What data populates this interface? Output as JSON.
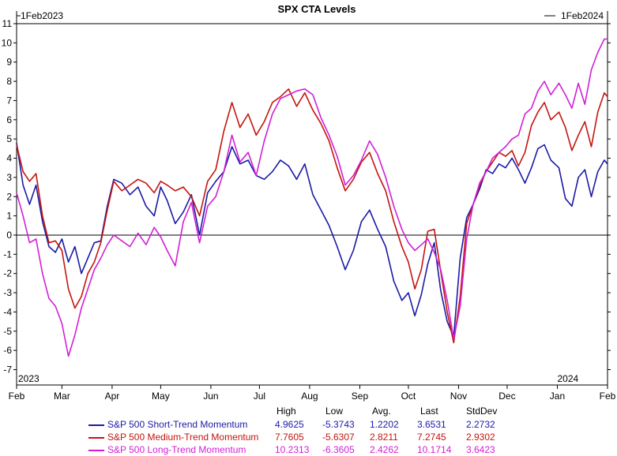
{
  "chart_data": {
    "type": "line",
    "title": "SPX CTA Levels",
    "start_marker": "1Feb2023",
    "end_marker": "1Feb2024",
    "year_labels": [
      "2023",
      "2024"
    ],
    "xlabel": "",
    "ylabel": "",
    "ylim": [
      -7.8,
      11
    ],
    "yticks": [
      -7,
      -6,
      -5,
      -4,
      -3,
      -2,
      -1,
      0,
      1,
      2,
      3,
      4,
      5,
      6,
      7,
      8,
      9,
      10,
      11
    ],
    "x_range": [
      "2023-02-01",
      "2024-02-01"
    ],
    "xticks": [
      {
        "date": "2023-02-01",
        "label": "Feb"
      },
      {
        "date": "2023-03-01",
        "label": "Mar"
      },
      {
        "date": "2023-04-01",
        "label": "Apr"
      },
      {
        "date": "2023-05-01",
        "label": "May"
      },
      {
        "date": "2023-06-01",
        "label": "Jun"
      },
      {
        "date": "2023-07-01",
        "label": "Jul"
      },
      {
        "date": "2023-08-01",
        "label": "Aug"
      },
      {
        "date": "2023-09-01",
        "label": "Sep"
      },
      {
        "date": "2023-10-01",
        "label": "Oct"
      },
      {
        "date": "2023-11-01",
        "label": "Nov"
      },
      {
        "date": "2023-12-01",
        "label": "Dec"
      },
      {
        "date": "2024-01-01",
        "label": "Jan"
      },
      {
        "date": "2024-02-01",
        "label": "Feb"
      }
    ],
    "zero_line": true,
    "grid": false,
    "stat_headers": [
      "High",
      "Low",
      "Avg.",
      "Last",
      "StdDev"
    ],
    "series": [
      {
        "name": "S&P 500 Short-Trend Momentum",
        "color": "#1a1aa6",
        "stats": [
          "4.9625",
          "-5.3743",
          "1.2202",
          "3.6531",
          "2.2732"
        ],
        "points": [
          [
            "2023-02-01",
            4.8
          ],
          [
            "2023-02-05",
            2.6
          ],
          [
            "2023-02-09",
            1.6
          ],
          [
            "2023-02-13",
            2.6
          ],
          [
            "2023-02-17",
            0.7
          ],
          [
            "2023-02-21",
            -0.6
          ],
          [
            "2023-02-25",
            -0.9
          ],
          [
            "2023-03-01",
            -0.2
          ],
          [
            "2023-03-05",
            -1.4
          ],
          [
            "2023-03-09",
            -0.6
          ],
          [
            "2023-03-13",
            -2.0
          ],
          [
            "2023-03-17",
            -1.2
          ],
          [
            "2023-03-21",
            -0.4
          ],
          [
            "2023-03-25",
            -0.3
          ],
          [
            "2023-03-29",
            1.5
          ],
          [
            "2023-04-02",
            2.9
          ],
          [
            "2023-04-07",
            2.7
          ],
          [
            "2023-04-12",
            2.1
          ],
          [
            "2023-04-17",
            2.5
          ],
          [
            "2023-04-22",
            1.5
          ],
          [
            "2023-04-27",
            1.0
          ],
          [
            "2023-05-01",
            2.5
          ],
          [
            "2023-05-05",
            1.8
          ],
          [
            "2023-05-10",
            0.6
          ],
          [
            "2023-05-15",
            1.2
          ],
          [
            "2023-05-20",
            2.1
          ],
          [
            "2023-05-25",
            0.0
          ],
          [
            "2023-05-30",
            2.2
          ],
          [
            "2023-06-04",
            2.8
          ],
          [
            "2023-06-09",
            3.3
          ],
          [
            "2023-06-14",
            4.6
          ],
          [
            "2023-06-19",
            3.7
          ],
          [
            "2023-06-24",
            3.9
          ],
          [
            "2023-06-29",
            3.1
          ],
          [
            "2023-07-04",
            2.9
          ],
          [
            "2023-07-09",
            3.3
          ],
          [
            "2023-07-14",
            3.9
          ],
          [
            "2023-07-19",
            3.6
          ],
          [
            "2023-07-24",
            2.9
          ],
          [
            "2023-07-29",
            3.7
          ],
          [
            "2023-08-03",
            2.1
          ],
          [
            "2023-08-08",
            1.3
          ],
          [
            "2023-08-13",
            0.5
          ],
          [
            "2023-08-18",
            -0.6
          ],
          [
            "2023-08-23",
            -1.8
          ],
          [
            "2023-08-28",
            -0.8
          ],
          [
            "2023-09-02",
            0.7
          ],
          [
            "2023-09-07",
            1.3
          ],
          [
            "2023-09-12",
            0.3
          ],
          [
            "2023-09-17",
            -0.6
          ],
          [
            "2023-09-22",
            -2.4
          ],
          [
            "2023-09-27",
            -3.4
          ],
          [
            "2023-10-01",
            -3.0
          ],
          [
            "2023-10-05",
            -4.2
          ],
          [
            "2023-10-09",
            -3.1
          ],
          [
            "2023-10-13",
            -1.5
          ],
          [
            "2023-10-17",
            -0.4
          ],
          [
            "2023-10-21",
            -2.9
          ],
          [
            "2023-10-25",
            -4.5
          ],
          [
            "2023-10-29",
            -5.3
          ],
          [
            "2023-11-02",
            -1.2
          ],
          [
            "2023-11-06",
            0.9
          ],
          [
            "2023-11-10",
            1.6
          ],
          [
            "2023-11-14",
            2.4
          ],
          [
            "2023-11-18",
            3.4
          ],
          [
            "2023-11-22",
            3.2
          ],
          [
            "2023-11-26",
            3.7
          ],
          [
            "2023-11-30",
            3.5
          ],
          [
            "2023-12-04",
            4.0
          ],
          [
            "2023-12-08",
            3.4
          ],
          [
            "2023-12-12",
            2.7
          ],
          [
            "2023-12-16",
            3.5
          ],
          [
            "2023-12-20",
            4.5
          ],
          [
            "2023-12-24",
            4.7
          ],
          [
            "2023-12-28",
            3.9
          ],
          [
            "2024-01-02",
            3.5
          ],
          [
            "2024-01-06",
            1.9
          ],
          [
            "2024-01-10",
            1.5
          ],
          [
            "2024-01-14",
            3.0
          ],
          [
            "2024-01-18",
            3.4
          ],
          [
            "2024-01-22",
            2.0
          ],
          [
            "2024-01-26",
            3.3
          ],
          [
            "2024-01-30",
            3.9
          ],
          [
            "2024-02-01",
            3.7
          ]
        ]
      },
      {
        "name": "S&P 500 Medium-Trend Momentum",
        "color": "#c4150e",
        "stats": [
          "7.7605",
          "-5.6307",
          "2.8211",
          "7.2745",
          "2.9302"
        ],
        "points": [
          [
            "2023-02-01",
            4.7
          ],
          [
            "2023-02-05",
            3.3
          ],
          [
            "2023-02-09",
            2.8
          ],
          [
            "2023-02-13",
            3.2
          ],
          [
            "2023-02-17",
            1.0
          ],
          [
            "2023-02-21",
            -0.4
          ],
          [
            "2023-02-25",
            -0.3
          ],
          [
            "2023-03-01",
            -0.8
          ],
          [
            "2023-03-05",
            -2.8
          ],
          [
            "2023-03-09",
            -3.8
          ],
          [
            "2023-03-13",
            -3.2
          ],
          [
            "2023-03-17",
            -2.0
          ],
          [
            "2023-03-21",
            -1.4
          ],
          [
            "2023-03-25",
            -0.4
          ],
          [
            "2023-03-29",
            1.3
          ],
          [
            "2023-04-02",
            2.8
          ],
          [
            "2023-04-07",
            2.3
          ],
          [
            "2023-04-12",
            2.6
          ],
          [
            "2023-04-17",
            2.9
          ],
          [
            "2023-04-22",
            2.7
          ],
          [
            "2023-04-27",
            2.2
          ],
          [
            "2023-05-01",
            2.8
          ],
          [
            "2023-05-05",
            2.6
          ],
          [
            "2023-05-10",
            2.3
          ],
          [
            "2023-05-15",
            2.5
          ],
          [
            "2023-05-20",
            2.0
          ],
          [
            "2023-05-25",
            1.0
          ],
          [
            "2023-05-30",
            2.8
          ],
          [
            "2023-06-04",
            3.4
          ],
          [
            "2023-06-09",
            5.4
          ],
          [
            "2023-06-14",
            6.9
          ],
          [
            "2023-06-19",
            5.6
          ],
          [
            "2023-06-24",
            6.3
          ],
          [
            "2023-06-29",
            5.2
          ],
          [
            "2023-07-04",
            5.9
          ],
          [
            "2023-07-09",
            6.9
          ],
          [
            "2023-07-14",
            7.2
          ],
          [
            "2023-07-19",
            7.6
          ],
          [
            "2023-07-24",
            6.7
          ],
          [
            "2023-07-29",
            7.4
          ],
          [
            "2023-08-03",
            6.5
          ],
          [
            "2023-08-08",
            5.8
          ],
          [
            "2023-08-13",
            4.9
          ],
          [
            "2023-08-18",
            3.5
          ],
          [
            "2023-08-23",
            2.3
          ],
          [
            "2023-08-28",
            2.9
          ],
          [
            "2023-09-02",
            3.8
          ],
          [
            "2023-09-07",
            4.3
          ],
          [
            "2023-09-12",
            3.2
          ],
          [
            "2023-09-17",
            2.3
          ],
          [
            "2023-09-22",
            0.7
          ],
          [
            "2023-09-27",
            -0.6
          ],
          [
            "2023-10-01",
            -1.4
          ],
          [
            "2023-10-05",
            -2.8
          ],
          [
            "2023-10-09",
            -1.8
          ],
          [
            "2023-10-13",
            0.2
          ],
          [
            "2023-10-17",
            0.3
          ],
          [
            "2023-10-21",
            -1.9
          ],
          [
            "2023-10-25",
            -4.0
          ],
          [
            "2023-10-29",
            -5.6
          ],
          [
            "2023-11-02",
            -3.2
          ],
          [
            "2023-11-06",
            0.6
          ],
          [
            "2023-11-10",
            1.6
          ],
          [
            "2023-11-14",
            2.6
          ],
          [
            "2023-11-18",
            3.3
          ],
          [
            "2023-11-22",
            3.8
          ],
          [
            "2023-11-26",
            4.3
          ],
          [
            "2023-11-30",
            4.1
          ],
          [
            "2023-12-04",
            4.4
          ],
          [
            "2023-12-08",
            3.6
          ],
          [
            "2023-12-12",
            4.3
          ],
          [
            "2023-12-16",
            5.7
          ],
          [
            "2023-12-20",
            6.4
          ],
          [
            "2023-12-24",
            6.9
          ],
          [
            "2023-12-28",
            6.0
          ],
          [
            "2024-01-02",
            6.4
          ],
          [
            "2024-01-06",
            5.6
          ],
          [
            "2024-01-10",
            4.4
          ],
          [
            "2024-01-14",
            5.2
          ],
          [
            "2024-01-18",
            5.9
          ],
          [
            "2024-01-22",
            4.6
          ],
          [
            "2024-01-26",
            6.4
          ],
          [
            "2024-01-30",
            7.4
          ],
          [
            "2024-02-01",
            7.2
          ]
        ]
      },
      {
        "name": "S&P 500 Long-Trend Momentum",
        "color": "#d21fd6",
        "stats": [
          "10.2313",
          "-6.3605",
          "2.4262",
          "10.1714",
          "3.6423"
        ],
        "points": [
          [
            "2023-02-01",
            2.2
          ],
          [
            "2023-02-05",
            1.0
          ],
          [
            "2023-02-09",
            -0.4
          ],
          [
            "2023-02-13",
            -0.2
          ],
          [
            "2023-02-17",
            -2.0
          ],
          [
            "2023-02-21",
            -3.3
          ],
          [
            "2023-02-25",
            -3.7
          ],
          [
            "2023-03-01",
            -4.6
          ],
          [
            "2023-03-05",
            -6.3
          ],
          [
            "2023-03-09",
            -5.2
          ],
          [
            "2023-03-13",
            -3.8
          ],
          [
            "2023-03-17",
            -2.8
          ],
          [
            "2023-03-21",
            -1.8
          ],
          [
            "2023-03-25",
            -1.2
          ],
          [
            "2023-03-29",
            -0.5
          ],
          [
            "2023-04-02",
            0.0
          ],
          [
            "2023-04-07",
            -0.3
          ],
          [
            "2023-04-12",
            -0.6
          ],
          [
            "2023-04-17",
            0.1
          ],
          [
            "2023-04-22",
            -0.5
          ],
          [
            "2023-04-27",
            0.4
          ],
          [
            "2023-05-01",
            -0.1
          ],
          [
            "2023-05-05",
            -0.8
          ],
          [
            "2023-05-10",
            -1.6
          ],
          [
            "2023-05-15",
            0.7
          ],
          [
            "2023-05-20",
            1.7
          ],
          [
            "2023-05-25",
            -0.4
          ],
          [
            "2023-05-30",
            1.5
          ],
          [
            "2023-06-04",
            2.0
          ],
          [
            "2023-06-09",
            3.3
          ],
          [
            "2023-06-14",
            5.2
          ],
          [
            "2023-06-19",
            3.8
          ],
          [
            "2023-06-24",
            4.3
          ],
          [
            "2023-06-29",
            3.1
          ],
          [
            "2023-07-04",
            4.9
          ],
          [
            "2023-07-09",
            6.3
          ],
          [
            "2023-07-14",
            7.1
          ],
          [
            "2023-07-19",
            7.3
          ],
          [
            "2023-07-24",
            7.5
          ],
          [
            "2023-07-29",
            7.6
          ],
          [
            "2023-08-03",
            7.3
          ],
          [
            "2023-08-08",
            6.1
          ],
          [
            "2023-08-13",
            5.2
          ],
          [
            "2023-08-18",
            4.1
          ],
          [
            "2023-08-23",
            2.6
          ],
          [
            "2023-08-28",
            3.1
          ],
          [
            "2023-09-02",
            3.9
          ],
          [
            "2023-09-07",
            4.9
          ],
          [
            "2023-09-12",
            4.2
          ],
          [
            "2023-09-17",
            3.0
          ],
          [
            "2023-09-22",
            1.5
          ],
          [
            "2023-09-27",
            0.3
          ],
          [
            "2023-10-01",
            -0.4
          ],
          [
            "2023-10-05",
            -0.8
          ],
          [
            "2023-10-09",
            -0.5
          ],
          [
            "2023-10-13",
            -0.2
          ],
          [
            "2023-10-17",
            -0.9
          ],
          [
            "2023-10-21",
            -1.8
          ],
          [
            "2023-10-25",
            -3.4
          ],
          [
            "2023-10-29",
            -5.4
          ],
          [
            "2023-11-02",
            -3.7
          ],
          [
            "2023-11-06",
            -0.2
          ],
          [
            "2023-11-10",
            1.6
          ],
          [
            "2023-11-14",
            2.7
          ],
          [
            "2023-11-18",
            3.3
          ],
          [
            "2023-11-22",
            4.0
          ],
          [
            "2023-11-26",
            4.3
          ],
          [
            "2023-11-30",
            4.6
          ],
          [
            "2023-12-04",
            5.0
          ],
          [
            "2023-12-08",
            5.2
          ],
          [
            "2023-12-12",
            6.3
          ],
          [
            "2023-12-16",
            6.6
          ],
          [
            "2023-12-20",
            7.5
          ],
          [
            "2023-12-24",
            8.0
          ],
          [
            "2023-12-28",
            7.3
          ],
          [
            "2024-01-02",
            7.9
          ],
          [
            "2024-01-06",
            7.3
          ],
          [
            "2024-01-10",
            6.6
          ],
          [
            "2024-01-14",
            7.9
          ],
          [
            "2024-01-18",
            6.8
          ],
          [
            "2024-01-22",
            8.6
          ],
          [
            "2024-01-26",
            9.5
          ],
          [
            "2024-01-30",
            10.2
          ],
          [
            "2024-02-01",
            10.2
          ]
        ]
      }
    ]
  }
}
